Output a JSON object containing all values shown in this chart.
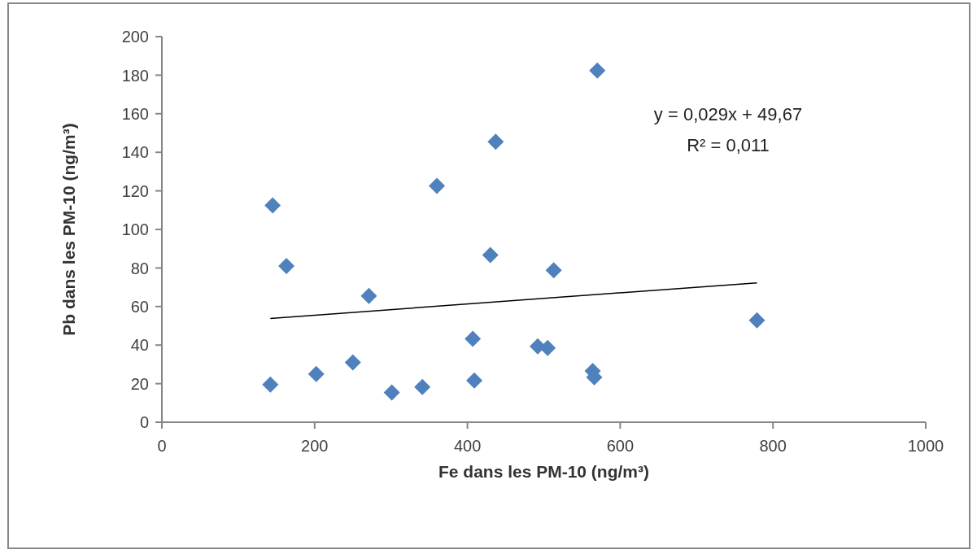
{
  "chart_data": {
    "type": "scatter",
    "xlabel": "Fe dans les PM-10 (ng/m³)",
    "ylabel": "Pb dans les PM-10 (ng/m³)",
    "xlim": [
      0,
      1000
    ],
    "xticks": [
      0,
      200,
      400,
      600,
      800,
      1000
    ],
    "ylim": [
      0,
      200
    ],
    "yticks": [
      0,
      20,
      40,
      60,
      80,
      100,
      120,
      140,
      160,
      180,
      200
    ],
    "marker": "diamond",
    "series": [
      {
        "color": "#4f81bd",
        "x": [
          145,
          163,
          142,
          202,
          250,
          271,
          301,
          341,
          360,
          437,
          430,
          407,
          409,
          492,
          505,
          570,
          513,
          564,
          566,
          779
        ],
        "values": [
          112.5,
          81,
          19.5,
          25,
          31,
          65.5,
          15.4,
          18.3,
          122.6,
          145.5,
          86.7,
          43.3,
          21.6,
          39.3,
          38.5,
          182.4,
          78.8,
          26.6,
          23.3,
          52.9
        ]
      },
      {
        "type": "line",
        "marker": "none",
        "color": "#000000",
        "x": [
          142,
          779
        ],
        "values": [
          53.8,
          72.3
        ]
      }
    ],
    "annotations": [
      "y = 0,029x + 49,67",
      "R² = 0,011"
    ]
  }
}
